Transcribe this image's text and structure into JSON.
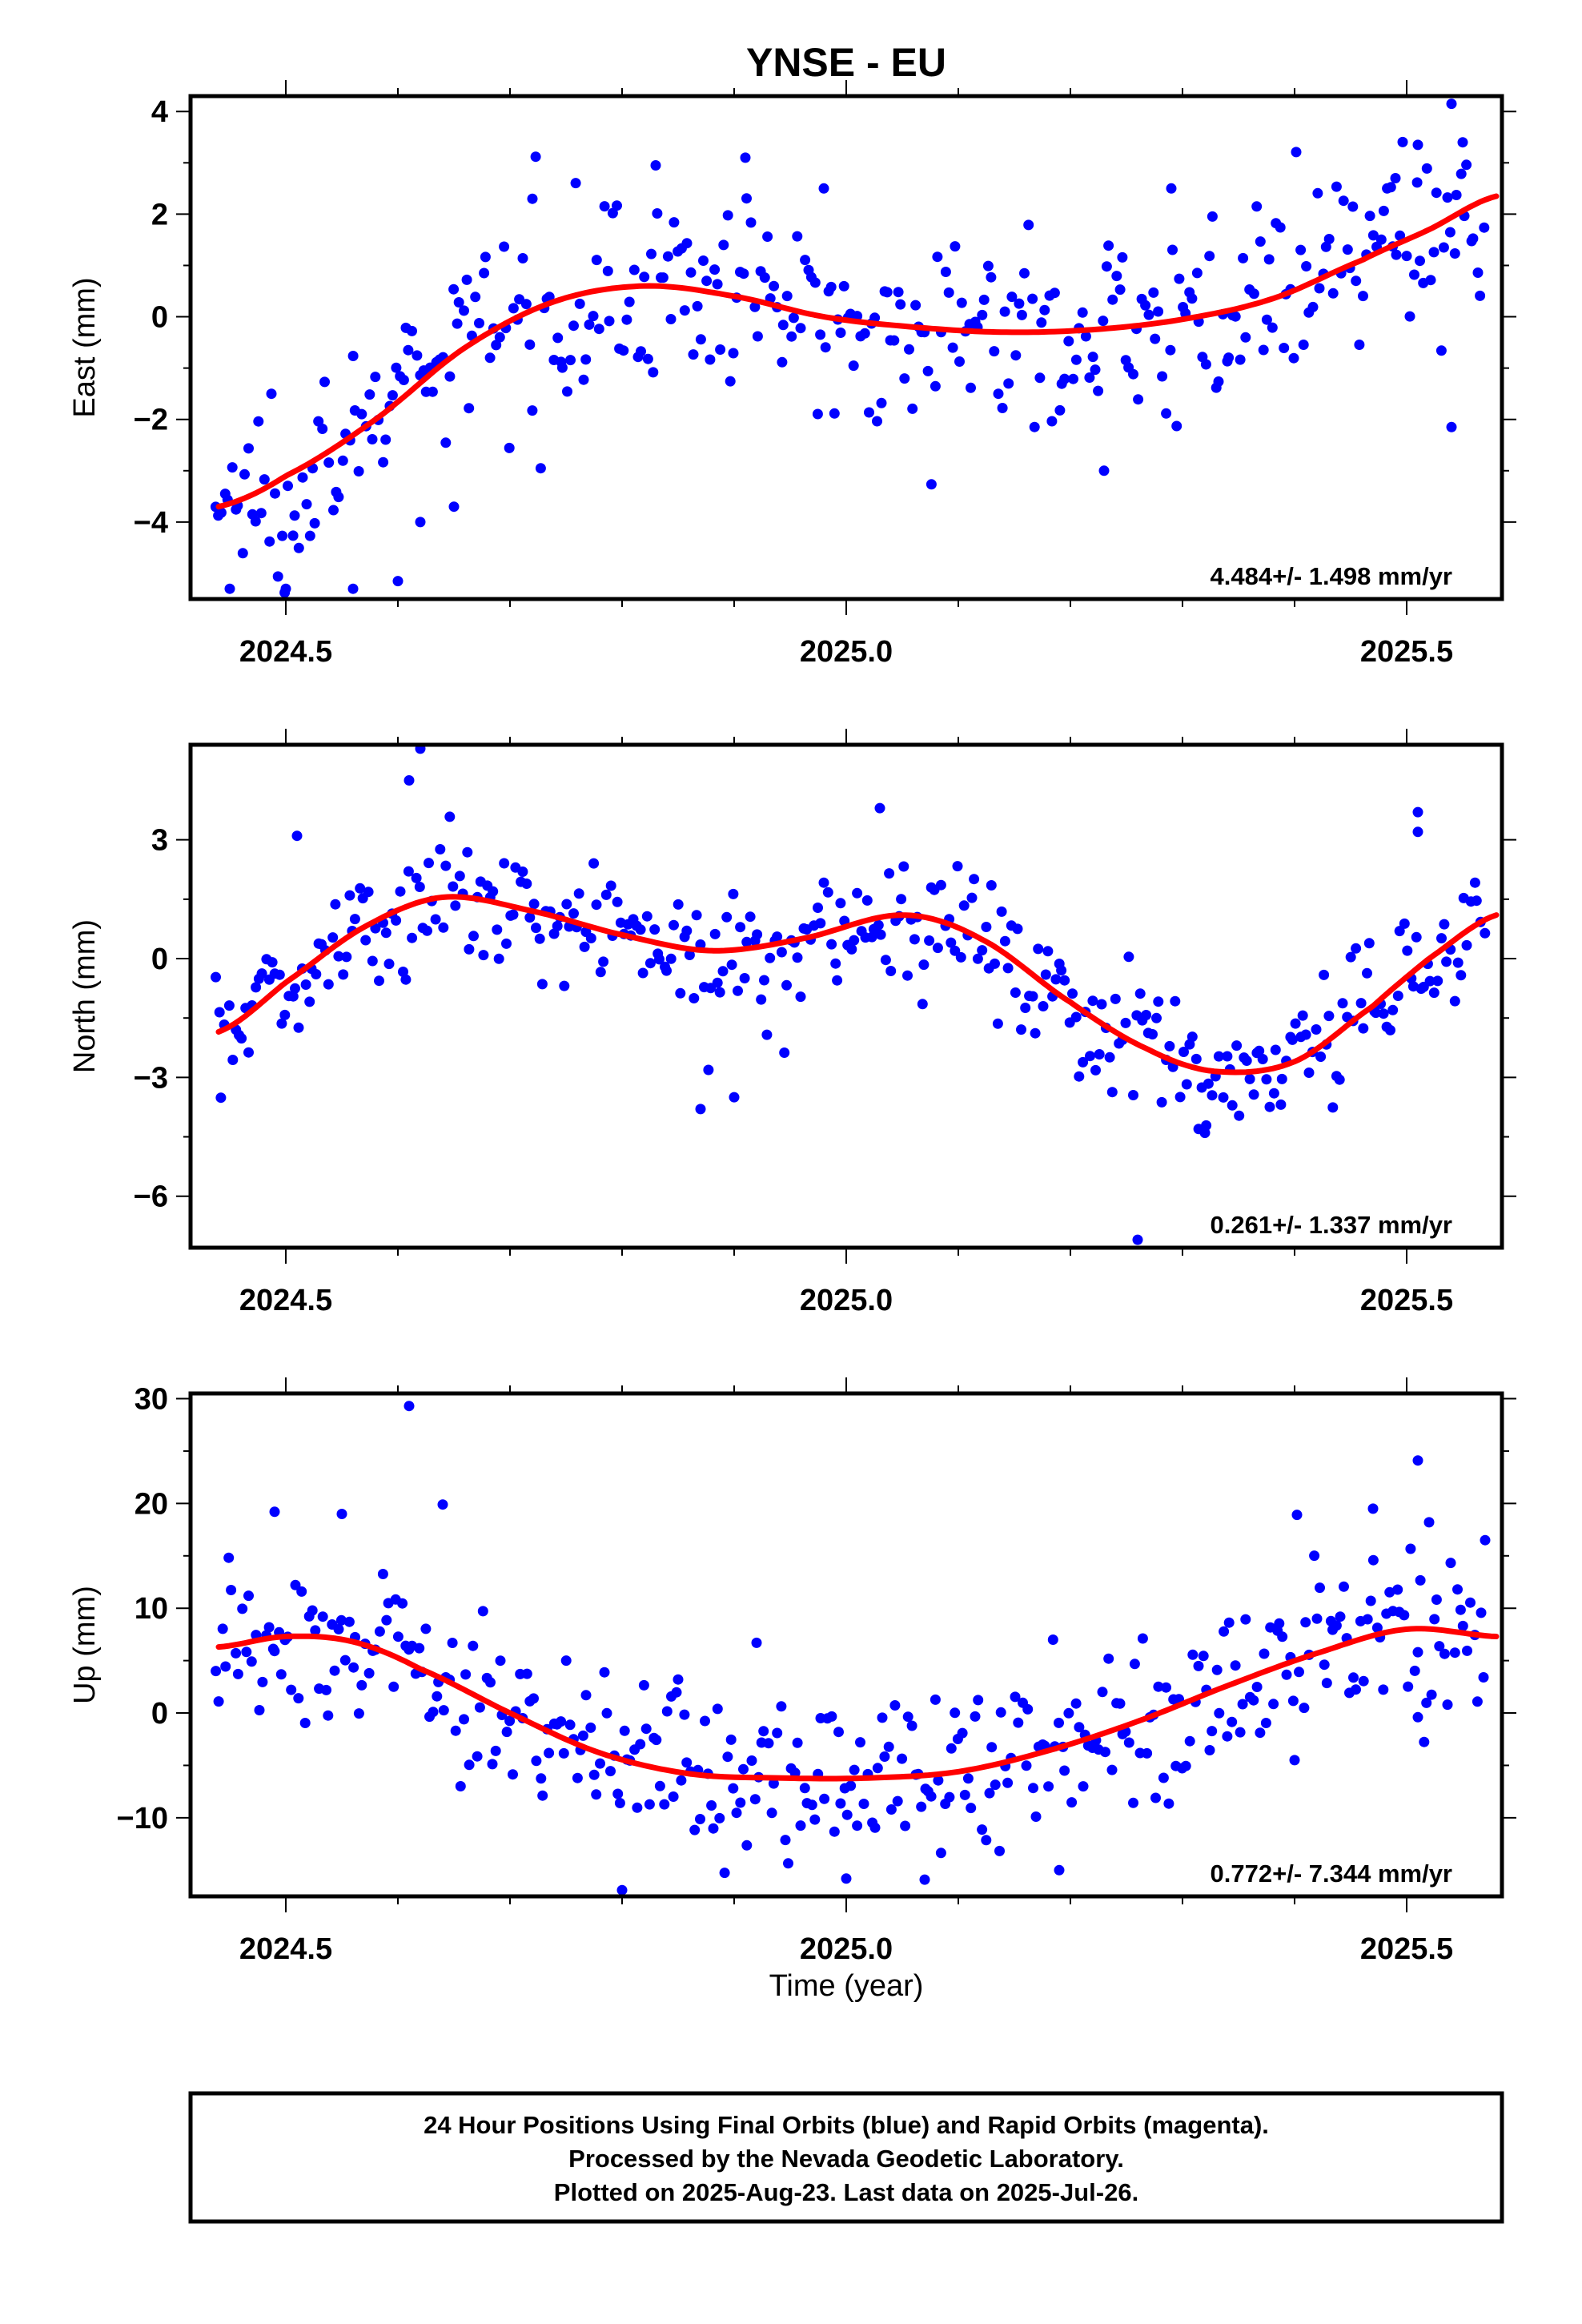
{
  "title": "YNSE - EU",
  "x_axis_title": "Time (year)",
  "footer_lines": [
    "24 Hour Positions Using Final Orbits (blue) and Rapid Orbits (magenta).",
    "Processed by the Nevada Geodetic Laboratory.",
    "Plotted on 2025-Aug-23. Last data on 2025-Jul-26."
  ],
  "colors": {
    "final_orbits": "#0000ff",
    "rapid_orbits": "#ff00ff",
    "fit": "#ff0000",
    "frame": "#000000"
  },
  "chart_data": [
    {
      "type": "scatter",
      "ylabel": "East (mm)",
      "xlim": [
        2024.415,
        2025.585
      ],
      "ylim": [
        -5.5,
        4.3
      ],
      "xticks": [
        2024.5,
        2025.0,
        2025.5
      ],
      "xtick_labels": [
        "2024.5",
        "2025.0",
        "2025.5"
      ],
      "yticks": [
        -4,
        -2,
        0,
        2,
        4
      ],
      "ytick_labels": [
        "−4",
        "−2",
        "0",
        "2",
        "4"
      ],
      "rate": "4.484+/- 1.498 mm/yr",
      "fit_knots": {
        "x": [
          2024.44,
          2024.5,
          2024.58,
          2024.66,
          2024.74,
          2024.82,
          2024.9,
          2024.98,
          2025.06,
          2025.14,
          2025.22,
          2025.3,
          2025.38,
          2025.46,
          2025.52,
          2025.58
        ],
        "y": [
          -3.7,
          -3.1,
          -2.0,
          -0.6,
          0.3,
          0.6,
          0.4,
          0.0,
          -0.2,
          -0.3,
          -0.25,
          -0.05,
          0.35,
          1.1,
          1.7,
          2.35
        ]
      },
      "scatter_sd": 0.9,
      "outliers": [
        [
          2024.45,
          -5.3
        ],
        [
          2024.5,
          -5.3
        ],
        [
          2024.56,
          -5.3
        ],
        [
          2024.6,
          -5.15
        ],
        [
          2024.62,
          -4.0
        ],
        [
          2024.65,
          -3.7
        ],
        [
          2024.72,
          2.3
        ],
        [
          2024.83,
          2.95
        ],
        [
          2024.91,
          3.1
        ],
        [
          2024.98,
          2.5
        ],
        [
          2025.23,
          -3.0
        ],
        [
          2025.29,
          2.5
        ],
        [
          2025.49,
          2.7
        ],
        [
          2025.51,
          3.35
        ],
        [
          2025.54,
          4.15
        ],
        [
          2025.55,
          3.4
        ],
        [
          2025.54,
          -2.15
        ]
      ]
    },
    {
      "type": "scatter",
      "ylabel": "North (mm)",
      "xlim": [
        2024.415,
        2025.585
      ],
      "ylim": [
        -7.3,
        5.4
      ],
      "xticks": [
        2024.5,
        2025.0,
        2025.5
      ],
      "xtick_labels": [
        "2024.5",
        "2025.0",
        "2025.5"
      ],
      "yticks": [
        -6,
        -3,
        0,
        3
      ],
      "ytick_labels": [
        "−6",
        "−3",
        "0",
        "3"
      ],
      "rate": "0.261+/- 1.337 mm/yr",
      "fit_knots": {
        "x": [
          2024.44,
          2024.5,
          2024.57,
          2024.64,
          2024.72,
          2024.8,
          2024.88,
          2024.96,
          2025.05,
          2025.12,
          2025.2,
          2025.27,
          2025.33,
          2025.4,
          2025.47,
          2025.52,
          2025.58
        ],
        "y": [
          -1.85,
          -0.6,
          0.8,
          1.55,
          1.2,
          0.6,
          0.2,
          0.5,
          1.1,
          0.5,
          -1.1,
          -2.3,
          -2.85,
          -2.6,
          -1.2,
          0.0,
          1.1
        ]
      },
      "scatter_sd": 0.85,
      "outliers": [
        [
          2024.61,
          4.5
        ],
        [
          2024.62,
          5.3
        ],
        [
          2024.51,
          3.1
        ],
        [
          2024.87,
          -3.8
        ],
        [
          2024.9,
          -3.5
        ],
        [
          2025.03,
          3.8
        ],
        [
          2025.26,
          -7.1
        ],
        [
          2025.32,
          -4.4
        ],
        [
          2025.51,
          3.7
        ],
        [
          2025.51,
          3.2
        ]
      ]
    },
    {
      "type": "scatter",
      "ylabel": "Up (mm)",
      "xlim": [
        2024.415,
        2025.585
      ],
      "ylim": [
        -17.5,
        30.5
      ],
      "xticks": [
        2024.5,
        2025.0,
        2025.5
      ],
      "xtick_labels": [
        "2024.5",
        "2025.0",
        "2025.5"
      ],
      "yticks": [
        -10,
        0,
        10,
        20,
        30
      ],
      "ytick_labels": [
        "−10",
        "0",
        "10",
        "20",
        "30"
      ],
      "rate": "0.772+/- 7.344 mm/yr",
      "fit_knots": {
        "x": [
          2024.44,
          2024.5,
          2024.56,
          2024.62,
          2024.7,
          2024.78,
          2024.86,
          2024.94,
          2025.02,
          2025.1,
          2025.18,
          2025.26,
          2025.34,
          2025.42,
          2025.5,
          2025.58
        ],
        "y": [
          6.3,
          7.3,
          6.8,
          4.2,
          0.0,
          -3.8,
          -5.8,
          -6.2,
          -6.2,
          -5.6,
          -3.6,
          -0.8,
          2.6,
          5.7,
          8.0,
          7.3
        ]
      },
      "scatter_sd": 4.0,
      "outliers": [
        [
          2024.61,
          29.3
        ],
        [
          2024.64,
          19.9
        ],
        [
          2024.49,
          19.2
        ],
        [
          2024.55,
          19.0
        ],
        [
          2024.8,
          -16.9
        ],
        [
          2024.85,
          3.2
        ],
        [
          2024.92,
          6.7
        ],
        [
          2025.0,
          -15.8
        ],
        [
          2025.07,
          -15.9
        ],
        [
          2025.19,
          -15.0
        ],
        [
          2025.4,
          -4.5
        ],
        [
          2025.51,
          24.1
        ],
        [
          2025.52,
          18.2
        ],
        [
          2025.57,
          16.5
        ],
        [
          2025.47,
          19.5
        ],
        [
          2025.51,
          -0.4
        ]
      ]
    }
  ]
}
